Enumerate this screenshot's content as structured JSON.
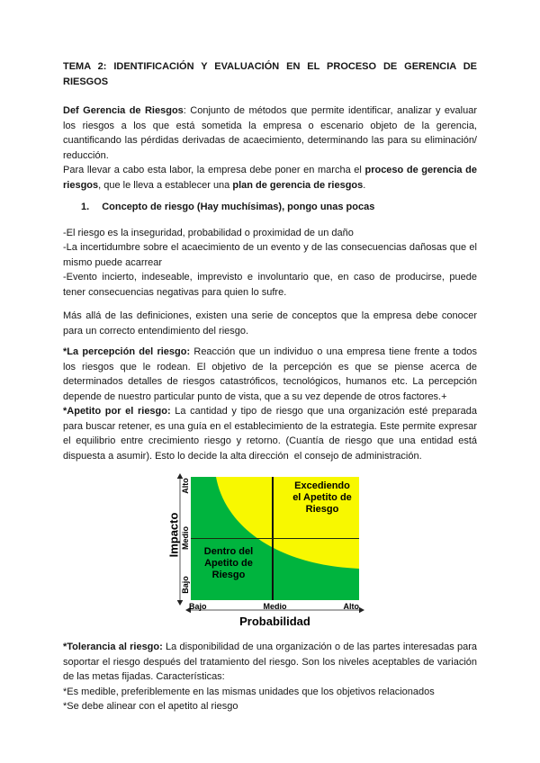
{
  "document": {
    "title_line_1": "TEMA 2: IDENTIFICACIÓN Y EVALUACIÓN EN EL PROCESO DE GERENCIA DE",
    "title_line_2": "RIESGOS",
    "heading_1": {
      "number": "1.",
      "text": "Concepto de riesgo (Hay muchísimas), pongo unas pocas"
    },
    "blocks": [
      {
        "name": "def-gerencia",
        "segments": [
          {
            "t": "Def Gerencia de Riesgos",
            "b": true
          },
          {
            "t": ": Conjunto de métodos que permite identificar, analizar y evaluar los riesgos a los que está sometida la empresa o escenario objeto de la gerencia, cuantificando las pérdidas derivadas de acaecimiento, determinando las para su eliminación/ reducción."
          }
        ]
      },
      {
        "name": "para-llevar",
        "segments": [
          {
            "t": "Para llevar a cabo esta labor, la empresa debe poner en marcha el "
          },
          {
            "t": "proceso de gerencia de riesgos",
            "b": true
          },
          {
            "t": ", que le lleva a establecer una "
          },
          {
            "t": "plan de gerencia de riesgos",
            "b": true
          },
          {
            "t": "."
          }
        ]
      },
      {
        "name": "bullet-1",
        "segments": [
          {
            "t": "-El riesgo es la inseguridad, probabilidad o proximidad de un daño"
          }
        ]
      },
      {
        "name": "bullet-2",
        "segments": [
          {
            "t": "-La incertidumbre sobre el acaecimiento de un evento y de las consecuencias dañosas que el mismo puede acarrear"
          }
        ]
      },
      {
        "name": "bullet-3",
        "segments": [
          {
            "t": "-Evento incierto, indeseable, imprevisto e involuntario que, en caso de producirse, puede tener consecuencias negativas para quien lo sufre."
          }
        ]
      },
      {
        "name": "mas-alla",
        "segments": [
          {
            "t": "Más allá de las definiciones, existen una serie de conceptos que la empresa debe conocer para un correcto entendimiento del riesgo."
          }
        ]
      },
      {
        "name": "percepcion",
        "segments": [
          {
            "t": "*La percepción del riesgo:",
            "b": true
          },
          {
            "t": " Reacción que un individuo o una empresa tiene frente a todos los riesgos que le rodean. El objetivo de la percepción es que se piense acerca de determinados detalles de riesgos catastróficos, tecnológicos, humanos etc. La percepción depende de nuestro particular punto de vista, que a su vez depende de otros factores.+"
          }
        ]
      },
      {
        "name": "apetito",
        "segments": [
          {
            "t": "*Apetito por el riesgo:",
            "b": true
          },
          {
            "t": " La cantidad y tipo de riesgo que una organización esté preparada para buscar retener, es una guía en el establecimiento de la estrategia. Este permite expresar el equilibrio entre crecimiento riesgo y retorno. (Cuantía de riesgo que una entidad está dispuesta a asumir). Esto lo decide la alta dirección  el consejo de administración."
          }
        ]
      },
      {
        "name": "tolerancia",
        "segments": [
          {
            "t": "*Tolerancia al riesgo:",
            "b": true
          },
          {
            "t": " La disponibilidad de una organización o de las partes interesadas para soportar el riesgo después del tratamiento del riesgo. Son los niveles aceptables de variación de las metas fijadas. Características:"
          }
        ]
      },
      {
        "name": "medible",
        "segments": [
          {
            "t": "*Es medible, preferiblemente en las mismas unidades que los objetivos relacionados"
          }
        ]
      },
      {
        "name": "alinear",
        "segments": [
          {
            "t": "*Se debe alinear con el apetito al riesgo"
          }
        ]
      }
    ]
  },
  "figure": {
    "y_axis_label": "Impacto",
    "x_axis_label": "Probabilidad",
    "y_ticks": [
      "Alto",
      "Medio",
      "Bajo"
    ],
    "x_ticks": [
      "Bajo",
      "Medio",
      "Alto"
    ],
    "inside_label": "Dentro del Apetito de Riesgo",
    "outside_label": "Excediendo el Apetito de Riesgo",
    "colors": {
      "inside": "#00b43e",
      "outside": "#f8f800",
      "crosshair": "#101010",
      "axis": "#555555"
    }
  },
  "chart_data": {
    "type": "area",
    "title": "",
    "xlabel": "Probabilidad",
    "ylabel": "Impacto",
    "x_tick_labels": [
      "Bajo",
      "Medio",
      "Alto"
    ],
    "y_tick_labels": [
      "Bajo",
      "Medio",
      "Alto"
    ],
    "legend_position": "none",
    "grid": false,
    "regions": [
      {
        "name": "Dentro del Apetito de Riesgo",
        "color": "#00b43e",
        "position": "lower-left of boundary curve"
      },
      {
        "name": "Excediendo el Apetito de Riesgo",
        "color": "#f8f800",
        "position": "upper-right of boundary curve"
      }
    ],
    "boundary_curve_points_pct_x_yfromtop": [
      [
        15,
        0
      ],
      [
        23,
        29
      ],
      [
        40,
        50
      ],
      [
        49,
        60
      ],
      [
        67,
        69
      ],
      [
        100,
        74
      ]
    ],
    "reference_lines": {
      "x": "Medio",
      "y": "Medio"
    }
  }
}
